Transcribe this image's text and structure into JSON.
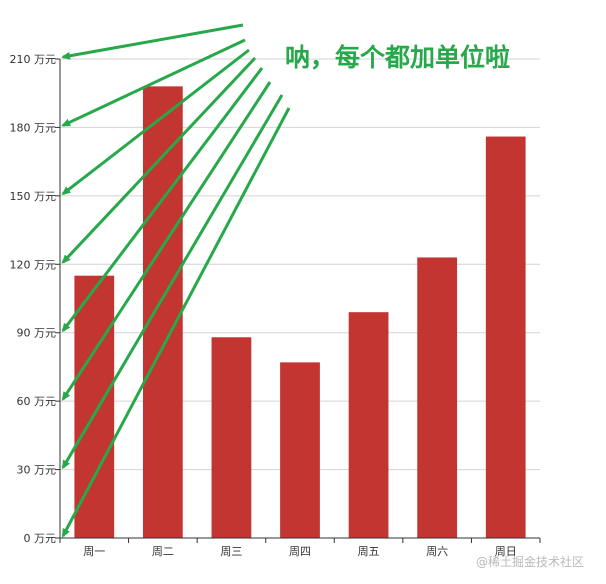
{
  "chart_data": {
    "type": "bar",
    "categories": [
      "周一",
      "周二",
      "周三",
      "周四",
      "周五",
      "周六",
      "周日"
    ],
    "values": [
      115,
      198,
      88,
      77,
      99,
      123,
      176
    ],
    "unit": "万元",
    "yticks": [
      "0 万元",
      "30 万元",
      "60 万元",
      "90 万元",
      "120 万元",
      "150 万元",
      "180 万元",
      "210 万元"
    ],
    "ylim": [
      0,
      210
    ],
    "grid": true,
    "bar_color": "#c23531",
    "annotation": {
      "text": "呐，每个都加单位啦",
      "color": "#27a84a"
    },
    "watermark": "@稀土掘金技术社区"
  }
}
